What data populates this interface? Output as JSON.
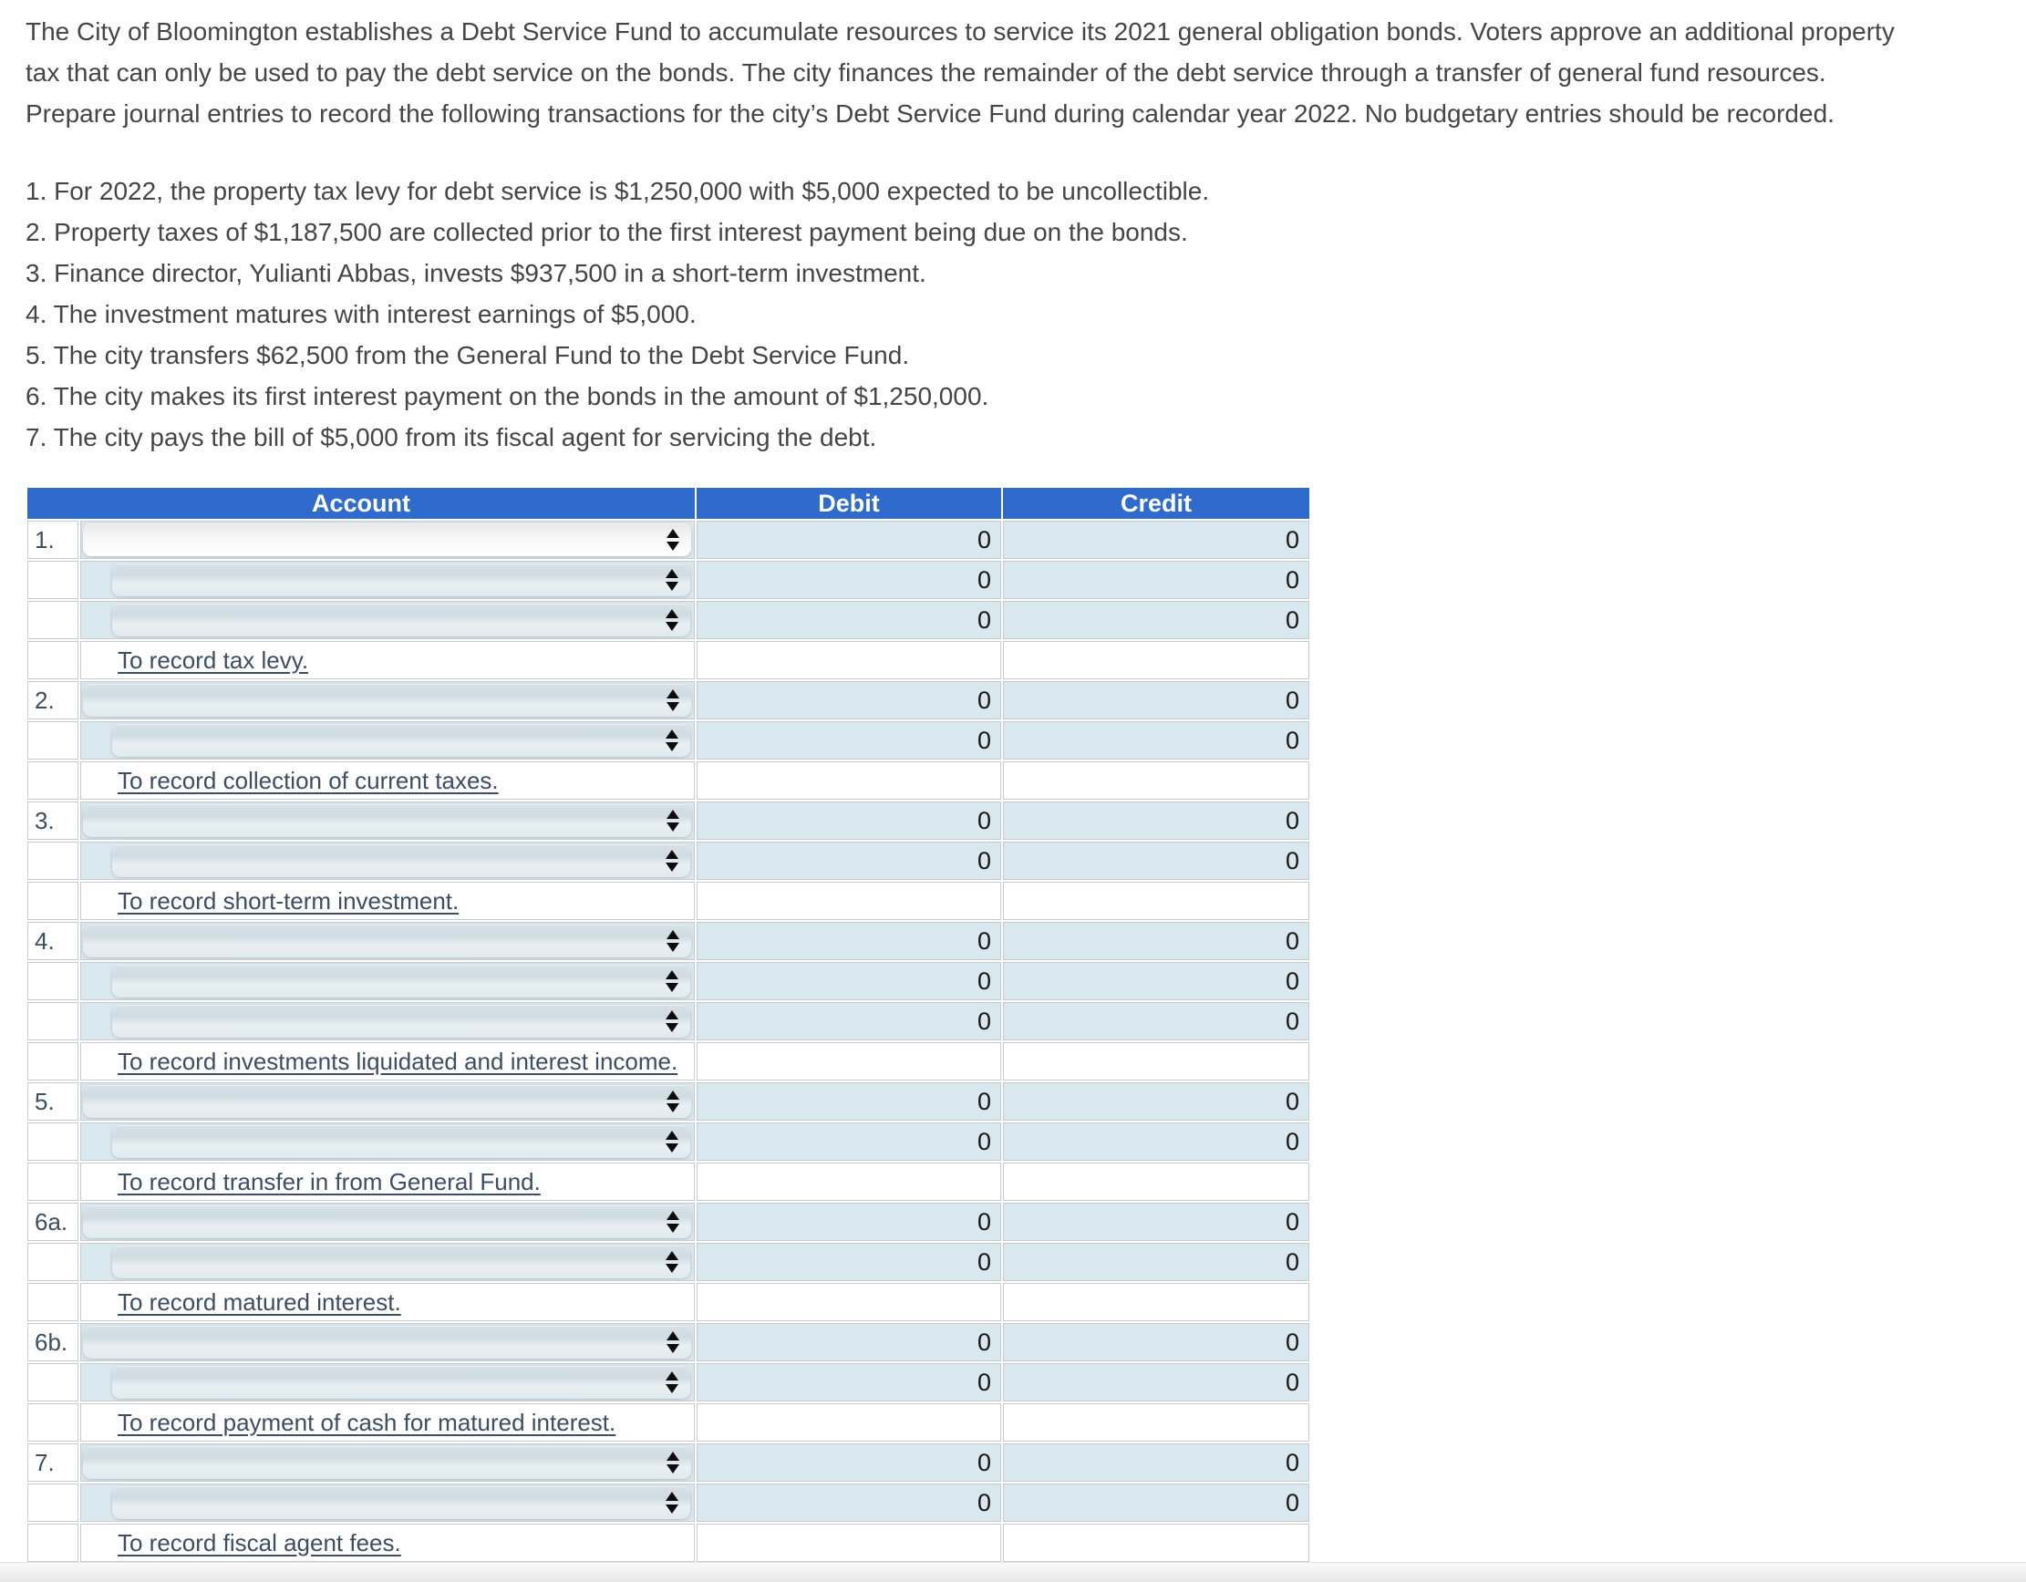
{
  "intro": {
    "lines": [
      "The City of Bloomington establishes a Debt Service Fund to accumulate resources to service its 2021 general obligation bonds. Voters approve an additional property",
      "tax that can only be used to pay the debt service on the bonds. The city finances the remainder of the debt service through a transfer of general fund resources.",
      "Prepare journal entries to record the following transactions for the city’s Debt Service Fund during calendar year 2022. No budgetary entries should be recorded."
    ]
  },
  "transactions": {
    "items": [
      "1. For 2022, the property tax levy for debt service is $1,250,000 with $5,000 expected to be uncollectible.",
      "2. Property taxes of $1,187,500 are collected prior to the first interest payment being due on the bonds.",
      "3. Finance director, Yulianti Abbas, invests $937,500 in a short-term investment.",
      "4. The investment matures with interest earnings of $5,000.",
      "5. The city transfers $62,500 from the General Fund to the Debt Service Fund.",
      "6. The city makes its first interest payment on the bonds in the amount of $1,250,000.",
      "7. The city pays the bill of $5,000 from its fiscal agent for servicing the debt."
    ]
  },
  "journal": {
    "columns": {
      "account": "Account",
      "debit": "Debit",
      "credit": "Credit"
    },
    "colors": {
      "header_bg": "#2e6bcd",
      "header_text": "#ffffff",
      "cell_bg": "#d9e8ef",
      "grid_border": "#c7cbce",
      "memo_text": "#3d4d63",
      "label_text": "#3f4e5e",
      "value_text": "#171717",
      "body_text": "#454545"
    },
    "select_icon": "up-down-arrows",
    "entries": [
      {
        "label": "1.",
        "memo": "To record tax levy.",
        "rows": [
          {
            "indent": false,
            "focused": true,
            "debit": "0",
            "credit": "0"
          },
          {
            "indent": true,
            "focused": false,
            "debit": "0",
            "credit": "0"
          },
          {
            "indent": true,
            "focused": false,
            "debit": "0",
            "credit": "0"
          }
        ]
      },
      {
        "label": "2.",
        "memo": "To record collection of current taxes.",
        "rows": [
          {
            "indent": false,
            "focused": false,
            "debit": "0",
            "credit": "0"
          },
          {
            "indent": true,
            "focused": false,
            "debit": "0",
            "credit": "0"
          }
        ]
      },
      {
        "label": "3.",
        "memo": "To record short-term investment.",
        "rows": [
          {
            "indent": false,
            "focused": false,
            "debit": "0",
            "credit": "0"
          },
          {
            "indent": true,
            "focused": false,
            "debit": "0",
            "credit": "0"
          }
        ]
      },
      {
        "label": "4.",
        "memo": "To record investments liquidated and interest income.",
        "rows": [
          {
            "indent": false,
            "focused": false,
            "debit": "0",
            "credit": "0"
          },
          {
            "indent": true,
            "focused": false,
            "debit": "0",
            "credit": "0"
          },
          {
            "indent": true,
            "focused": false,
            "debit": "0",
            "credit": "0"
          }
        ]
      },
      {
        "label": "5.",
        "memo": "To record transfer in from General Fund.",
        "rows": [
          {
            "indent": false,
            "focused": false,
            "debit": "0",
            "credit": "0"
          },
          {
            "indent": true,
            "focused": false,
            "debit": "0",
            "credit": "0"
          }
        ]
      },
      {
        "label": "6a.",
        "memo": "To record matured interest.",
        "rows": [
          {
            "indent": false,
            "focused": false,
            "debit": "0",
            "credit": "0"
          },
          {
            "indent": true,
            "focused": false,
            "debit": "0",
            "credit": "0"
          }
        ]
      },
      {
        "label": "6b.",
        "memo": "To record payment of cash for matured interest.",
        "rows": [
          {
            "indent": false,
            "focused": false,
            "debit": "0",
            "credit": "0"
          },
          {
            "indent": true,
            "focused": false,
            "debit": "0",
            "credit": "0"
          }
        ]
      },
      {
        "label": "7.",
        "memo": "To record fiscal agent fees.",
        "rows": [
          {
            "indent": false,
            "focused": false,
            "debit": "0",
            "credit": "0"
          },
          {
            "indent": true,
            "focused": false,
            "debit": "0",
            "credit": "0"
          }
        ]
      }
    ]
  }
}
